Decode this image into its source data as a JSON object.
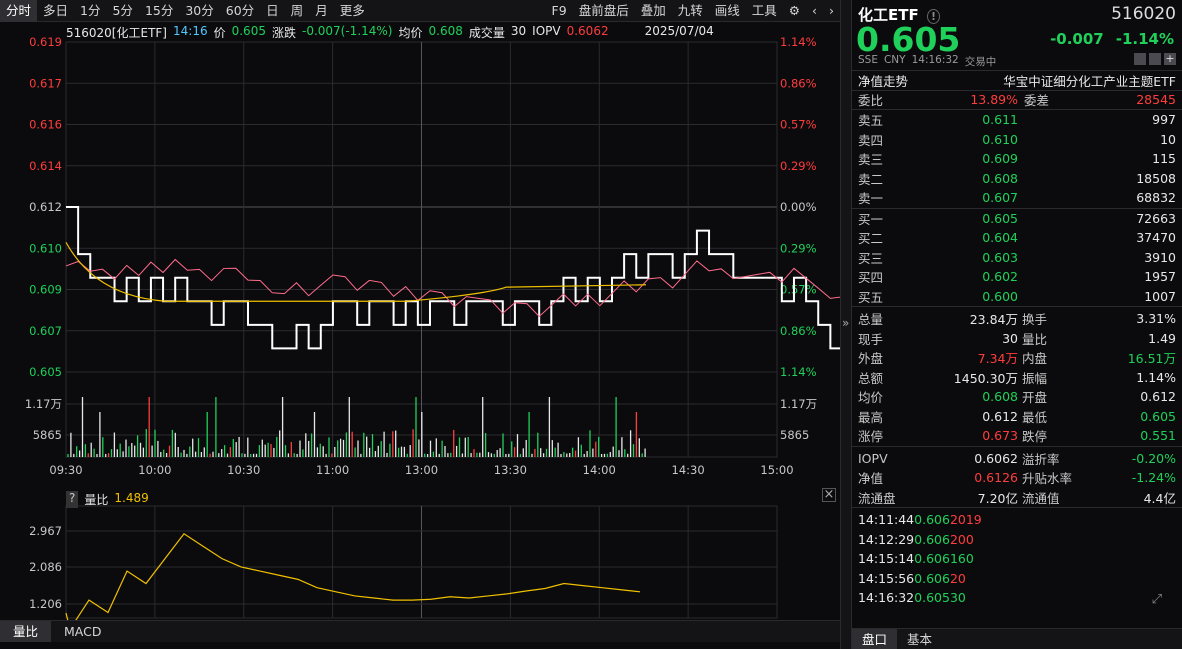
{
  "toolbar": {
    "left": [
      "分时",
      "多日",
      "1分",
      "5分",
      "15分",
      "30分",
      "60分",
      "日",
      "周",
      "月",
      "更多"
    ],
    "right": [
      "F9",
      "盘前盘后",
      "叠加",
      "九转",
      "画线",
      "工具"
    ]
  },
  "info": {
    "code_name": "516020[化工ETF]",
    "time": "14:16",
    "price_label": "价",
    "price": "0.605",
    "change_label": "涨跌",
    "change": "-0.007(-1.14%)",
    "avg_label": "均价",
    "avg": "0.608",
    "vol_label": "成交量",
    "vol": "30",
    "iopv_label": "IOPV",
    "iopv": "0.6062",
    "date": "2025/07/04"
  },
  "axes": {
    "price_ticks": [
      "0.619",
      "0.617",
      "0.616",
      "0.614",
      "0.612",
      "0.610",
      "0.609",
      "0.607",
      "0.605"
    ],
    "pct_ticks": [
      "1.14%",
      "0.86%",
      "0.57%",
      "0.29%",
      "0.00%",
      "0.29%",
      "0.57%",
      "0.86%",
      "1.14%"
    ],
    "vol_ticks": [
      "1.17万",
      "5865"
    ],
    "time_ticks": [
      "09:30",
      "10:00",
      "10:30",
      "11:00",
      "13:00",
      "13:30",
      "14:00",
      "14:30",
      "15:00"
    ],
    "ratio_ticks": [
      "2.967",
      "2.086",
      "1.206"
    ]
  },
  "lower": {
    "label": "量比",
    "value": "1.489"
  },
  "bottom_tabs": [
    "量比",
    "MACD"
  ],
  "panel": {
    "name": "化工ETF",
    "code": "516020",
    "price": "0.605",
    "change": "-0.007",
    "change_pct": "-1.14%",
    "exchange": "SSE",
    "currency": "CNY",
    "time": "14:16:32",
    "status": "交易中",
    "nav_label": "净值走势",
    "full_name": "华宝中证细分化工产业主题ETF",
    "weibi_label": "委比",
    "weibi": "13.89%",
    "weicha_label": "委差",
    "weicha": "28545",
    "asks": [
      {
        "label": "卖五",
        "price": "0.611",
        "vol": "997"
      },
      {
        "label": "卖四",
        "price": "0.610",
        "vol": "10"
      },
      {
        "label": "卖三",
        "price": "0.609",
        "vol": "115"
      },
      {
        "label": "卖二",
        "price": "0.608",
        "vol": "18508"
      },
      {
        "label": "卖一",
        "price": "0.607",
        "vol": "68832"
      }
    ],
    "bids": [
      {
        "label": "买一",
        "price": "0.605",
        "vol": "72663"
      },
      {
        "label": "买二",
        "price": "0.604",
        "vol": "37470"
      },
      {
        "label": "买三",
        "price": "0.603",
        "vol": "3910"
      },
      {
        "label": "买四",
        "price": "0.602",
        "vol": "1957"
      },
      {
        "label": "买五",
        "price": "0.600",
        "vol": "1007"
      }
    ],
    "stats": [
      {
        "l1": "总量",
        "v1": "23.84万",
        "c1": "white",
        "l2": "换手",
        "v2": "3.31%",
        "c2": "white"
      },
      {
        "l1": "现手",
        "v1": "30",
        "c1": "white",
        "l2": "量比",
        "v2": "1.49",
        "c2": "white"
      },
      {
        "l1": "外盘",
        "v1": "7.34万",
        "c1": "red",
        "l2": "内盘",
        "v2": "16.51万",
        "c2": "green"
      },
      {
        "l1": "总额",
        "v1": "1450.30万",
        "c1": "white",
        "l2": "振幅",
        "v2": "1.14%",
        "c2": "white"
      },
      {
        "l1": "均价",
        "v1": "0.608",
        "c1": "green",
        "l2": "开盘",
        "v2": "0.612",
        "c2": "white"
      },
      {
        "l1": "最高",
        "v1": "0.612",
        "c1": "white",
        "l2": "最低",
        "v2": "0.605",
        "c2": "green"
      },
      {
        "l1": "涨停",
        "v1": "0.673",
        "c1": "red",
        "l2": "跌停",
        "v2": "0.551",
        "c2": "green"
      }
    ],
    "stats2": [
      {
        "l1": "IOPV",
        "v1": "0.6062",
        "c1": "white",
        "l2": "溢折率",
        "v2": "-0.20%",
        "c2": "green"
      },
      {
        "l1": "净值",
        "v1": "0.6126",
        "c1": "red",
        "l2": "升贴水率",
        "v2": "-1.24%",
        "c2": "green"
      },
      {
        "l1": "流通盘",
        "v1": "7.20亿",
        "c1": "white",
        "l2": "流通值",
        "v2": "4.4亿",
        "c2": "white"
      }
    ],
    "ticks": [
      {
        "time": "14:11:44",
        "price": "0.606",
        "vol": "2019",
        "vc": "red"
      },
      {
        "time": "14:12:29",
        "price": "0.606",
        "vol": "200",
        "vc": "red"
      },
      {
        "time": "14:15:14",
        "price": "0.606",
        "vol": "160",
        "vc": "green"
      },
      {
        "time": "14:15:56",
        "price": "0.606",
        "vol": "20",
        "vc": "red"
      },
      {
        "time": "14:16:32",
        "price": "0.605",
        "vol": "30",
        "vc": "green"
      }
    ],
    "tabs": [
      "盘口",
      "基本"
    ]
  }
}
